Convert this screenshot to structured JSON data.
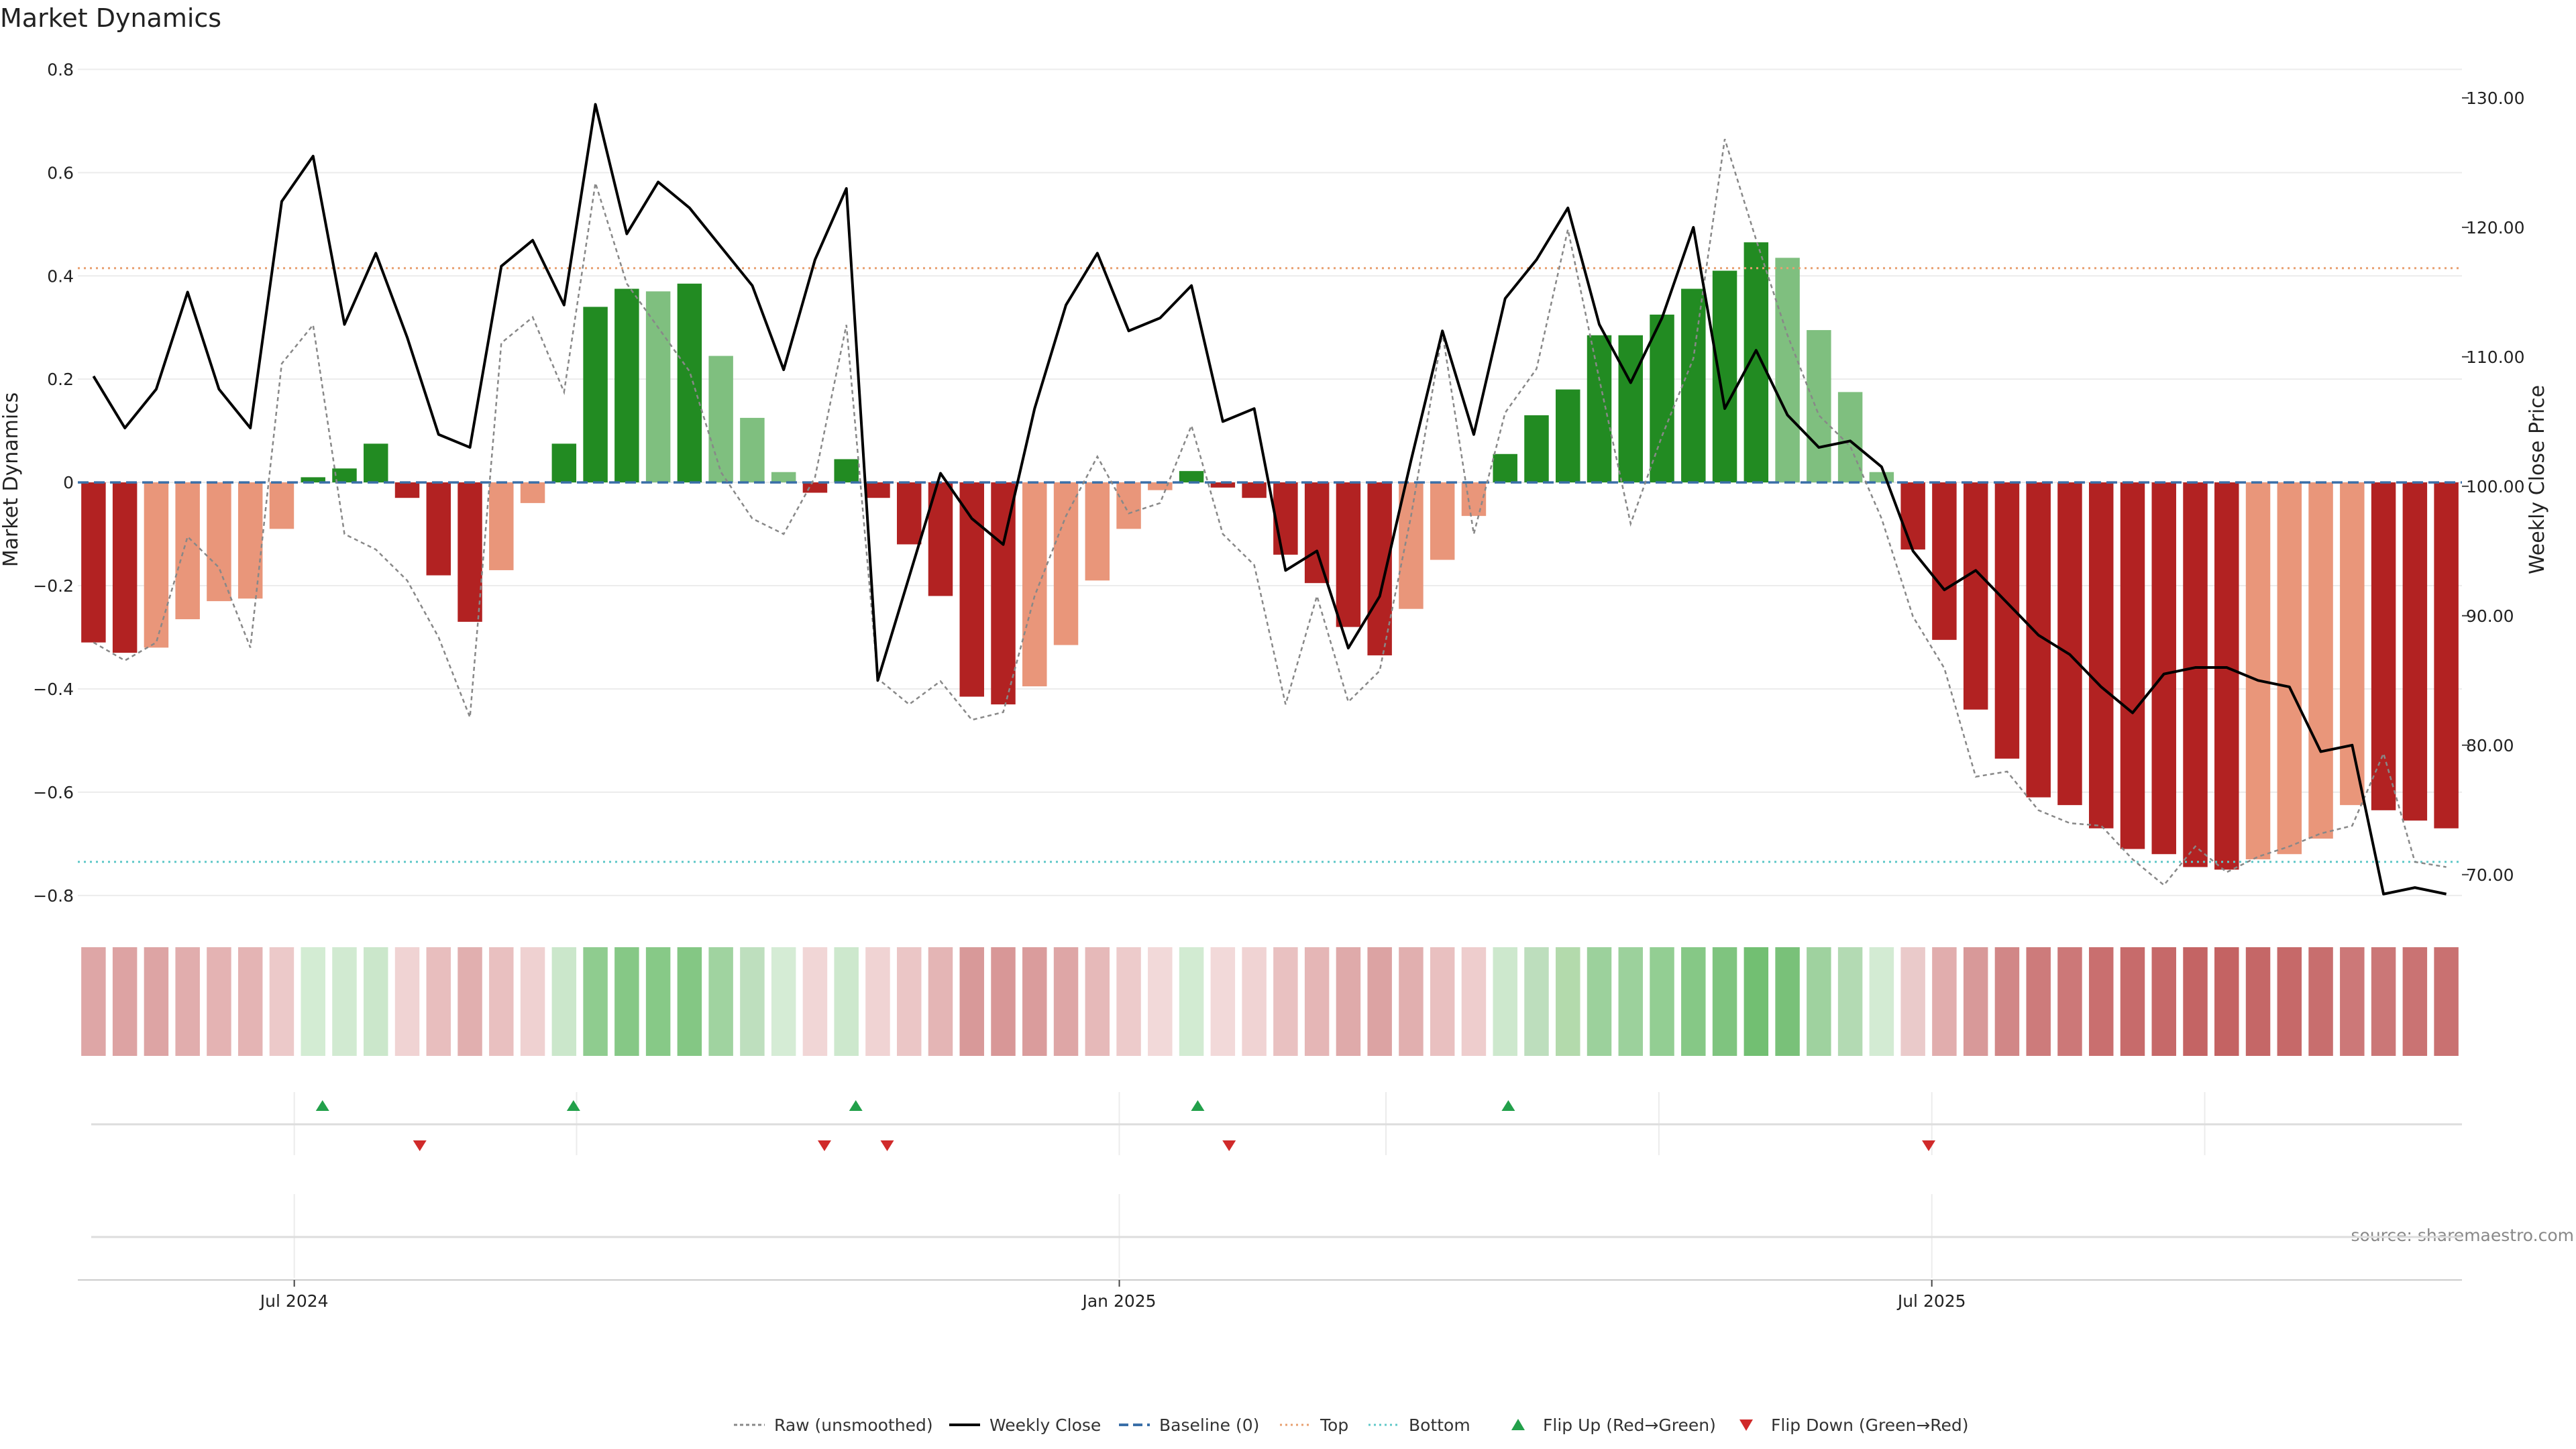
{
  "chart_data": {
    "type": "bar",
    "title": "Market Dynamics",
    "ylabel_left": "Market Dynamics",
    "ylabel_right": "Weekly Close Price",
    "left_ylim": [
      -0.86,
      0.82
    ],
    "right_ylim": [
      66.0,
      133.0
    ],
    "left_ticks": [
      "0.8",
      "0.6",
      "0.4",
      "0.2",
      "0",
      "−0.2",
      "−0.4",
      "−0.6",
      "−0.8"
    ],
    "left_tick_values": [
      0.8,
      0.6,
      0.4,
      0.2,
      0,
      -0.2,
      -0.4,
      -0.6,
      -0.8
    ],
    "right_ticks": [
      "130.00",
      "120.00",
      "110.00",
      "100.00",
      "90.00",
      "80.00",
      "70.00"
    ],
    "right_tick_values": [
      130,
      120,
      110,
      100,
      90,
      80,
      70
    ],
    "x_ticks": [
      {
        "label": "Jul 2024",
        "week": 6.4
      },
      {
        "label": "Jan 2025",
        "week": 32.7
      },
      {
        "label": "Jul 2025",
        "week": 58.6
      }
    ],
    "x_gridlines_flip_panel": [
      6.4,
      15.4,
      32.7,
      41.2,
      49.9,
      58.6,
      67.3
    ],
    "top_level": 0.415,
    "bottom_level": -0.735,
    "baseline": 0,
    "bar_values": [
      -0.31,
      -0.33,
      -0.32,
      -0.265,
      -0.23,
      -0.225,
      -0.09,
      0.01,
      0.027,
      0.075,
      -0.03,
      -0.18,
      -0.27,
      -0.17,
      -0.04,
      0.075,
      0.34,
      0.375,
      0.37,
      0.385,
      0.245,
      0.125,
      0.02,
      -0.02,
      0.045,
      -0.03,
      -0.12,
      -0.22,
      -0.415,
      -0.43,
      -0.395,
      -0.315,
      -0.19,
      -0.09,
      -0.015,
      0.022,
      -0.01,
      -0.03,
      -0.14,
      -0.195,
      -0.28,
      -0.335,
      -0.245,
      -0.15,
      -0.065,
      0.055,
      0.13,
      0.18,
      0.285,
      0.285,
      0.325,
      0.375,
      0.41,
      0.465,
      0.435,
      0.295,
      0.175,
      0.02,
      -0.13,
      -0.305,
      -0.44,
      -0.535,
      -0.61,
      -0.625,
      -0.67,
      -0.71,
      -0.72,
      -0.745,
      -0.75,
      -0.73,
      -0.72,
      -0.69,
      -0.625,
      -0.635,
      -0.655,
      -0.67
    ],
    "bar_colors": [
      "#b22222",
      "#b22222",
      "#e9967a",
      "#e9967a",
      "#e9967a",
      "#e9967a",
      "#e9967a",
      "#228b22",
      "#228b22",
      "#228b22",
      "#b22222",
      "#b22222",
      "#b22222",
      "#e9967a",
      "#e9967a",
      "#228b22",
      "#228b22",
      "#228b22",
      "#7fbf7f",
      "#228b22",
      "#7fbf7f",
      "#7fbf7f",
      "#7fbf7f",
      "#b22222",
      "#228b22",
      "#b22222",
      "#b22222",
      "#b22222",
      "#b22222",
      "#b22222",
      "#e9967a",
      "#e9967a",
      "#e9967a",
      "#e9967a",
      "#e9967a",
      "#228b22",
      "#b22222",
      "#b22222",
      "#b22222",
      "#b22222",
      "#b22222",
      "#b22222",
      "#e9967a",
      "#e9967a",
      "#e9967a",
      "#228b22",
      "#228b22",
      "#228b22",
      "#228b22",
      "#228b22",
      "#228b22",
      "#228b22",
      "#228b22",
      "#228b22",
      "#7fbf7f",
      "#7fbf7f",
      "#7fbf7f",
      "#7fbf7f",
      "#b22222",
      "#b22222",
      "#b22222",
      "#b22222",
      "#b22222",
      "#b22222",
      "#b22222",
      "#b22222",
      "#b22222",
      "#b22222",
      "#b22222",
      "#e9967a",
      "#e9967a",
      "#e9967a",
      "#e9967a",
      "#b22222",
      "#b22222",
      "#b22222"
    ],
    "heat_colors": [
      "#dea6a6",
      "#dda3a3",
      "#dda4a4",
      "#e1adad",
      "#e4b3b3",
      "#e4b4b4",
      "#ecc9c9",
      "#d3ecd3",
      "#d1ead1",
      "#cbe7cb",
      "#f0d3d3",
      "#e8bebe",
      "#e1afaf",
      "#e9c0c0",
      "#efd1d1",
      "#cbe7cb",
      "#8fcc8f",
      "#86c886",
      "#87c987",
      "#84c784",
      "#a0d3a0",
      "#bedfbe",
      "#d5ecd5",
      "#f1d6d6",
      "#cde8cd",
      "#f0d3d3",
      "#ebc6c6",
      "#e4b5b5",
      "#d89999",
      "#d89797",
      "#da9c9c",
      "#dea6a6",
      "#e6b9b9",
      "#edcbcb",
      "#f2d9d9",
      "#d2ebd2",
      "#f2d9d9",
      "#f0d3d3",
      "#e9c1c1",
      "#e5b6b6",
      "#dfaaaa",
      "#dca3a3",
      "#e1afaf",
      "#e9c0c0",
      "#eecdcd",
      "#cde8cd",
      "#bddebd",
      "#b3daac",
      "#9cd19c",
      "#9cd19c",
      "#93ce93",
      "#86c886",
      "#7fc47f",
      "#72bf72",
      "#79c179",
      "#9fd29f",
      "#b3dab3",
      "#d3ebd3",
      "#eacaca",
      "#e1adad",
      "#d89999",
      "#d18787",
      "#cd7b7b",
      "#cc7878",
      "#c96f6f",
      "#c76b6b",
      "#c66969",
      "#c46464",
      "#c46363",
      "#c56767",
      "#c66969",
      "#c86e6e",
      "#cc7878",
      "#cb7777",
      "#ca7373",
      "#c97171"
    ],
    "close_values": [
      108.5,
      104.5,
      107.5,
      115.0,
      107.5,
      104.5,
      122.0,
      125.5,
      112.5,
      118.0,
      111.5,
      104.0,
      103.0,
      117.0,
      119.0,
      114.0,
      129.5,
      119.5,
      123.5,
      121.5,
      118.5,
      115.5,
      109.0,
      117.5,
      123.0,
      85.0,
      93.0,
      101.0,
      97.5,
      95.5,
      106.0,
      114.0,
      118.0,
      112.0,
      113.0,
      115.5,
      105.0,
      106.0,
      93.5,
      95.0,
      87.5,
      91.5,
      102.0,
      112.0,
      104.0,
      114.5,
      117.5,
      121.5,
      112.5,
      108.0,
      113.0,
      120.0,
      106.0,
      110.5,
      105.5,
      103.0,
      103.5,
      101.5,
      95.0,
      92.0,
      93.5,
      91.0,
      88.5,
      87.0,
      84.5,
      82.5,
      85.5,
      86.0,
      86.0,
      85.0,
      84.5,
      79.5,
      80.0,
      68.5,
      69.0,
      68.5
    ],
    "raw_values": [
      -0.31,
      -0.345,
      -0.31,
      -0.105,
      -0.165,
      -0.32,
      0.23,
      0.305,
      -0.1,
      -0.13,
      -0.19,
      -0.3,
      -0.455,
      0.27,
      0.32,
      0.175,
      0.58,
      0.385,
      0.3,
      0.215,
      0.02,
      -0.07,
      -0.1,
      0.01,
      0.305,
      -0.38,
      -0.43,
      -0.385,
      -0.46,
      -0.445,
      -0.22,
      -0.065,
      0.05,
      -0.06,
      -0.04,
      0.11,
      -0.1,
      -0.16,
      -0.43,
      -0.22,
      -0.425,
      -0.365,
      -0.065,
      0.29,
      -0.1,
      0.135,
      0.22,
      0.49,
      0.2,
      -0.08,
      0.09,
      0.24,
      0.665,
      0.47,
      0.285,
      0.13,
      0.07,
      -0.07,
      -0.26,
      -0.36,
      -0.57,
      -0.56,
      -0.635,
      -0.66,
      -0.665,
      -0.73,
      -0.78,
      -0.705,
      -0.755,
      -0.725,
      -0.705,
      -0.68,
      -0.665,
      -0.525,
      -0.735,
      -0.745
    ],
    "flip_up_weeks": [
      7.3,
      15.3,
      24.3,
      35.2,
      45.1
    ],
    "flip_down_weeks": [
      10.4,
      23.3,
      25.3,
      36.2,
      58.5
    ],
    "source": "source: sharemaestro.com",
    "legend": {
      "raw": "Raw (unsmoothed)",
      "close": "Weekly Close",
      "baseline": "Baseline (0)",
      "top": "Top",
      "bottom": "Bottom",
      "flip_up": "Flip Up (Red→Green)",
      "flip_down": "Flip Down (Green→Red)"
    },
    "colors": {
      "close": "#000000",
      "raw": "#888888",
      "baseline": "#3a6fa8",
      "top": "#e8a070",
      "bottom": "#5fc8c8",
      "flip_up": "#22a04a",
      "flip_down": "#d02a2a",
      "grid": "#ececec"
    }
  }
}
